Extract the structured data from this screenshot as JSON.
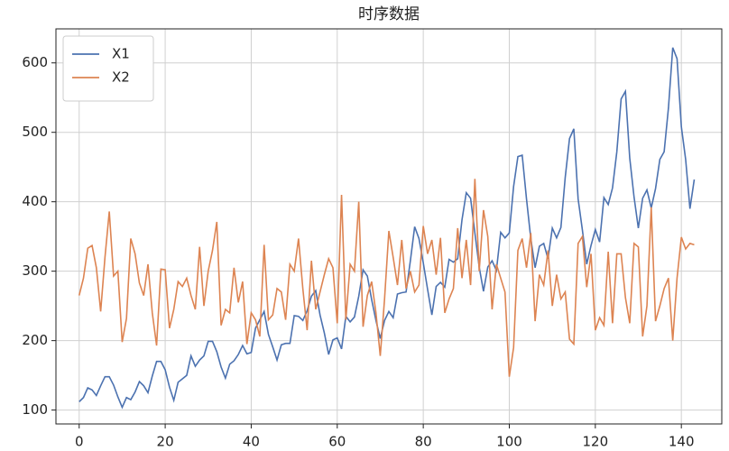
{
  "chart_data": {
    "type": "line",
    "title": "时序数据",
    "x": [
      0,
      1,
      2,
      3,
      4,
      5,
      6,
      7,
      8,
      9,
      10,
      11,
      12,
      13,
      14,
      15,
      16,
      17,
      18,
      19,
      20,
      21,
      22,
      23,
      24,
      25,
      26,
      27,
      28,
      29,
      30,
      31,
      32,
      33,
      34,
      35,
      36,
      37,
      38,
      39,
      40,
      41,
      42,
      43,
      44,
      45,
      46,
      47,
      48,
      49,
      50,
      51,
      52,
      53,
      54,
      55,
      56,
      57,
      58,
      59,
      60,
      61,
      62,
      63,
      64,
      65,
      66,
      67,
      68,
      69,
      70,
      71,
      72,
      73,
      74,
      75,
      76,
      77,
      78,
      79,
      80,
      81,
      82,
      83,
      84,
      85,
      86,
      87,
      88,
      89,
      90,
      91,
      92,
      93,
      94,
      95,
      96,
      97,
      98,
      99,
      100,
      101,
      102,
      103,
      104,
      105,
      106,
      107,
      108,
      109,
      110,
      111,
      112,
      113,
      114,
      115,
      116,
      117,
      118,
      119,
      120,
      121,
      122,
      123,
      124,
      125,
      126,
      127,
      128,
      129,
      130,
      131,
      132,
      133,
      134,
      135,
      136,
      137,
      138,
      139,
      140,
      141,
      142,
      143
    ],
    "series": [
      {
        "name": "X1",
        "color": "#4c72b0",
        "values": [
          112,
          118,
          132,
          129,
          121,
          135,
          148,
          148,
          136,
          119,
          104,
          118,
          115,
          126,
          141,
          135,
          125,
          149,
          170,
          170,
          158,
          133,
          114,
          140,
          145,
          150,
          178,
          163,
          172,
          178,
          199,
          199,
          184,
          162,
          146,
          166,
          171,
          180,
          193,
          181,
          183,
          218,
          230,
          242,
          209,
          191,
          172,
          194,
          196,
          196,
          236,
          235,
          229,
          243,
          264,
          272,
          237,
          211,
          180,
          201,
          204,
          188,
          235,
          227,
          234,
          264,
          302,
          293,
          259,
          229,
          203,
          229,
          242,
          233,
          267,
          269,
          270,
          315,
          364,
          347,
          312,
          274,
          237,
          278,
          284,
          277,
          317,
          313,
          318,
          374,
          413,
          405,
          355,
          306,
          271,
          306,
          315,
          301,
          356,
          348,
          355,
          422,
          465,
          467,
          404,
          347,
          305,
          336,
          340,
          318,
          362,
          348,
          363,
          435,
          491,
          505,
          404,
          359,
          310,
          337,
          360,
          342,
          406,
          396,
          420,
          472,
          548,
          559,
          463,
          407,
          362,
          405,
          417,
          391,
          419,
          461,
          472,
          535,
          622,
          606,
          508,
          461,
          390,
          432
        ]
      },
      {
        "name": "X2",
        "color": "#dd8452",
        "values": [
          265,
          290,
          333,
          337,
          305,
          242,
          320,
          386,
          293,
          300,
          198,
          232,
          347,
          325,
          283,
          265,
          310,
          240,
          193,
          303,
          302,
          218,
          245,
          285,
          278,
          290,
          265,
          245,
          335,
          250,
          300,
          330,
          371,
          222,
          245,
          240,
          305,
          255,
          285,
          195,
          240,
          230,
          206,
          338,
          230,
          237,
          275,
          270,
          230,
          310,
          300,
          347,
          275,
          215,
          315,
          245,
          270,
          295,
          318,
          305,
          225,
          410,
          230,
          310,
          300,
          400,
          220,
          265,
          285,
          240,
          178,
          260,
          358,
          320,
          280,
          345,
          275,
          300,
          270,
          280,
          365,
          325,
          345,
          295,
          348,
          240,
          260,
          275,
          362,
          290,
          345,
          280,
          433,
          300,
          388,
          350,
          245,
          310,
          290,
          270,
          148,
          190,
          330,
          347,
          305,
          355,
          228,
          295,
          280,
          330,
          250,
          295,
          260,
          270,
          202,
          195,
          340,
          350,
          277,
          325,
          215,
          233,
          222,
          328,
          225,
          325,
          325,
          262,
          225,
          340,
          335,
          206,
          250,
          392,
          228,
          250,
          275,
          290,
          200,
          290,
          349,
          332,
          340,
          338
        ]
      }
    ],
    "xlim": [
      -5.4,
      149.4
    ],
    "xticks": [
      0,
      20,
      40,
      60,
      80,
      100,
      120,
      140
    ],
    "ylim": [
      80,
      649
    ],
    "yticks": [
      100,
      200,
      300,
      400,
      500,
      600
    ],
    "grid": true,
    "legend": "upper left"
  }
}
